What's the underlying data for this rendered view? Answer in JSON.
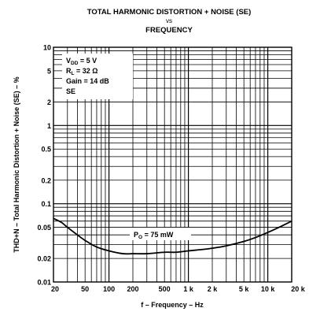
{
  "chart_data": {
    "type": "line",
    "title_line1": "TOTAL HARMONIC DISTORTION + NOISE (SE)",
    "title_line2": "vs",
    "title_line3": "FREQUENCY",
    "xlabel": "f – Frequency – Hz",
    "ylabel": "THD+N – Total Harmonic Distortion + Noise (SE) – %",
    "xscale": "log",
    "yscale": "log",
    "xlim": [
      20,
      20000
    ],
    "ylim": [
      0.01,
      10
    ],
    "grid": true,
    "x_tick_labels": [
      {
        "v": 20,
        "t": "20"
      },
      {
        "v": 50,
        "t": "50"
      },
      {
        "v": 100,
        "t": "100"
      },
      {
        "v": 200,
        "t": "200"
      },
      {
        "v": 500,
        "t": "500"
      },
      {
        "v": 1000,
        "t": "1 k"
      },
      {
        "v": 2000,
        "t": "2 k"
      },
      {
        "v": 5000,
        "t": "5 k"
      },
      {
        "v": 10000,
        "t": "10 k"
      },
      {
        "v": 20000,
        "t": "20 k"
      }
    ],
    "y_tick_labels": [
      {
        "v": 10,
        "t": "10"
      },
      {
        "v": 5,
        "t": "5"
      },
      {
        "v": 2,
        "t": "2"
      },
      {
        "v": 1,
        "t": "1"
      },
      {
        "v": 0.5,
        "t": "0.5"
      },
      {
        "v": 0.2,
        "t": "0.2"
      },
      {
        "v": 0.1,
        "t": "0.1"
      },
      {
        "v": 0.05,
        "t": "0.05"
      },
      {
        "v": 0.02,
        "t": "0.02"
      },
      {
        "v": 0.01,
        "t": "0.01"
      }
    ],
    "conditions": [
      {
        "main": "V",
        "sub": "DD",
        "rest": " = 5 V"
      },
      {
        "main": "R",
        "sub": "L",
        "rest": " = 32 Ω"
      },
      {
        "main": "Gain  = 14 dB",
        "sub": "",
        "rest": ""
      },
      {
        "main": "SE",
        "sub": "",
        "rest": ""
      }
    ],
    "series": [
      {
        "label_main": "P",
        "label_sub": "O",
        "label_rest": " = 75 mW",
        "x": [
          20,
          25,
          30,
          40,
          50,
          70,
          100,
          150,
          200,
          300,
          500,
          700,
          1000,
          1500,
          2000,
          3000,
          5000,
          7000,
          10000,
          15000,
          20000
        ],
        "y": [
          0.065,
          0.058,
          0.05,
          0.04,
          0.034,
          0.028,
          0.025,
          0.023,
          0.023,
          0.023,
          0.024,
          0.024,
          0.025,
          0.026,
          0.027,
          0.029,
          0.033,
          0.037,
          0.043,
          0.052,
          0.06
        ]
      }
    ]
  }
}
